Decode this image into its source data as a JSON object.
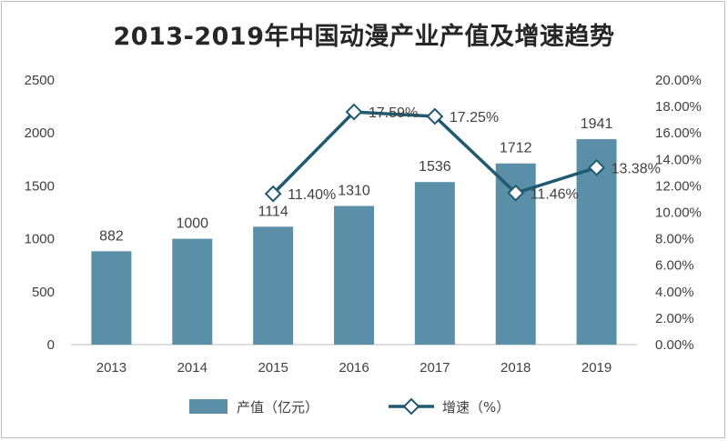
{
  "chart_data": {
    "type": "bar+line",
    "title": "2013-2019年中国动漫产业产值及增速趋势",
    "categories": [
      "2013",
      "2014",
      "2015",
      "2016",
      "2017",
      "2018",
      "2019"
    ],
    "series": [
      {
        "name": "产值（亿元）",
        "type": "bar",
        "axis": "left",
        "values": [
          882,
          1000,
          1114,
          1310,
          1536,
          1712,
          1941
        ],
        "labels": [
          "882",
          "1000",
          "1114",
          "1310",
          "1536",
          "1712",
          "1941"
        ],
        "color": "#5b8fa8"
      },
      {
        "name": "增速（%）",
        "type": "line",
        "axis": "right",
        "values": [
          null,
          null,
          11.4,
          17.59,
          17.25,
          11.46,
          13.38
        ],
        "labels": [
          "",
          "",
          "11.40%",
          "17.59%",
          "17.25%",
          "11.46%",
          "13.38%"
        ],
        "color": "#1f5a73"
      }
    ],
    "ylim_left": [
      0,
      2500
    ],
    "yticks_left": [
      "0",
      "500",
      "1000",
      "1500",
      "2000",
      "2500"
    ],
    "ylim_right": [
      0,
      20
    ],
    "yticks_right": [
      "0.00%",
      "2.00%",
      "4.00%",
      "6.00%",
      "8.00%",
      "10.00%",
      "12.00%",
      "14.00%",
      "16.00%",
      "18.00%",
      "20.00%"
    ],
    "legend_position": "bottom",
    "grid": false
  }
}
